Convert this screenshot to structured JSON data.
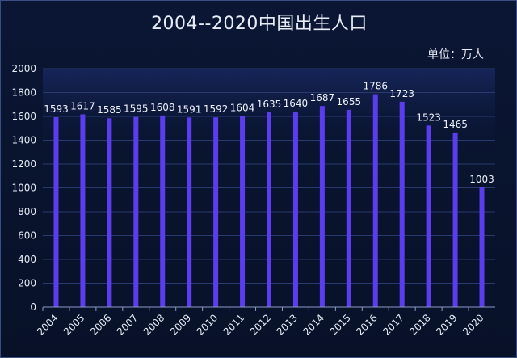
{
  "chart_data": {
    "type": "bar",
    "title": "2004--2020中国出生人口",
    "unit_label": "单位：万人",
    "categories": [
      "2004",
      "2005",
      "2006",
      "2007",
      "2008",
      "2009",
      "2010",
      "2011",
      "2012",
      "2013",
      "2014",
      "2015",
      "2016",
      "2017",
      "2018",
      "2019",
      "2020"
    ],
    "values": [
      1593,
      1617,
      1585,
      1595,
      1608,
      1591,
      1592,
      1604,
      1635,
      1640,
      1687,
      1655,
      1786,
      1723,
      1523,
      1465,
      1003
    ],
    "ylim": [
      0,
      2000
    ],
    "yticks": [
      0,
      200,
      400,
      600,
      800,
      1000,
      1200,
      1400,
      1600,
      1800,
      2000
    ],
    "grid": true,
    "bar_color": "#5b3df0",
    "background_color": "#0a1634"
  }
}
